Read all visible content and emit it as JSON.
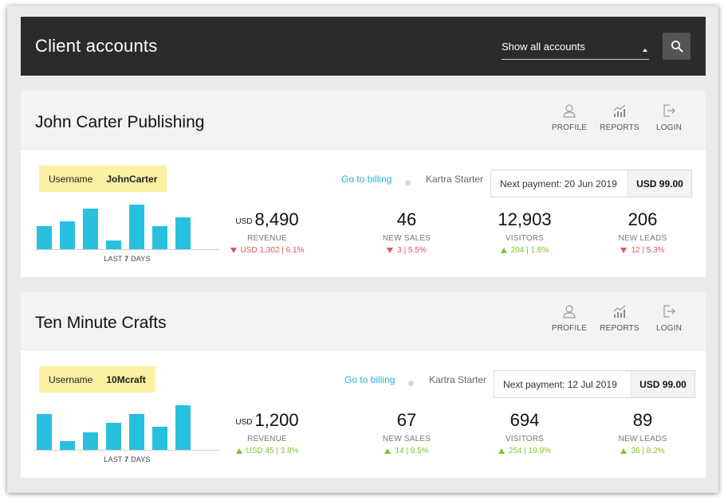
{
  "header": {
    "title": "Client accounts",
    "filter_value": "Show all accounts"
  },
  "colors": {
    "accent": "#29c0df",
    "link": "#29b0db",
    "down": "#e75457",
    "up": "#7cc62c",
    "badge": "#fbf1a2",
    "topbar": "#2b2b2b"
  },
  "header_actions": {
    "profile": "PROFILE",
    "reports": "REPORTS",
    "login": "LOGIN"
  },
  "accounts": [
    {
      "name": "John Carter Publishing",
      "username_label": "Username",
      "username": "JohnCarter",
      "last_days_prefix": "LAST",
      "last_days_num": "7",
      "last_days_suffix": "DAYS",
      "bar_values": [
        28,
        34,
        50,
        11,
        55,
        28,
        39
      ],
      "billing_link": "Go to billing",
      "plan": "Kartra Starter",
      "next_payment": "Next payment: 20 Jun 2019",
      "amount": "USD 99.00",
      "metrics": {
        "revenue": {
          "currency": "USD",
          "value": "8,490",
          "label": "REVENUE",
          "change": "USD 1,302 | 6.1%",
          "direction": "down"
        },
        "sales": {
          "value": "46",
          "label": "NEW SALES",
          "change": "3 | 5.5%",
          "direction": "down"
        },
        "visitors": {
          "value": "12,903",
          "label": "VISITORS",
          "change": "204 | 1.8%",
          "direction": "up"
        },
        "leads": {
          "value": "206",
          "label": "NEW LEADS",
          "change": "12 | 5.3%",
          "direction": "down"
        }
      }
    },
    {
      "name": "Ten Minute Crafts",
      "username_label": "Username",
      "username": "10Mcraft",
      "last_days_prefix": "LAST",
      "last_days_num": "7",
      "last_days_suffix": "DAYS",
      "bar_values": [
        44,
        11,
        22,
        33,
        44,
        28,
        55
      ],
      "billing_link": "Go to billing",
      "plan": "Kartra Starter",
      "next_payment": "Next payment: 12 Jul 2019",
      "amount": "USD 99.00",
      "metrics": {
        "revenue": {
          "currency": "USD",
          "value": "1,200",
          "label": "REVENUE",
          "change": "USD 45 | 3.8%",
          "direction": "up"
        },
        "sales": {
          "value": "67",
          "label": "NEW SALES",
          "change": "14 | 9.5%",
          "direction": "up"
        },
        "visitors": {
          "value": "694",
          "label": "VISITORS",
          "change": "254 | 19.9%",
          "direction": "up"
        },
        "leads": {
          "value": "89",
          "label": "NEW LEADS",
          "change": "36 | 8.2%",
          "direction": "up"
        }
      }
    }
  ]
}
